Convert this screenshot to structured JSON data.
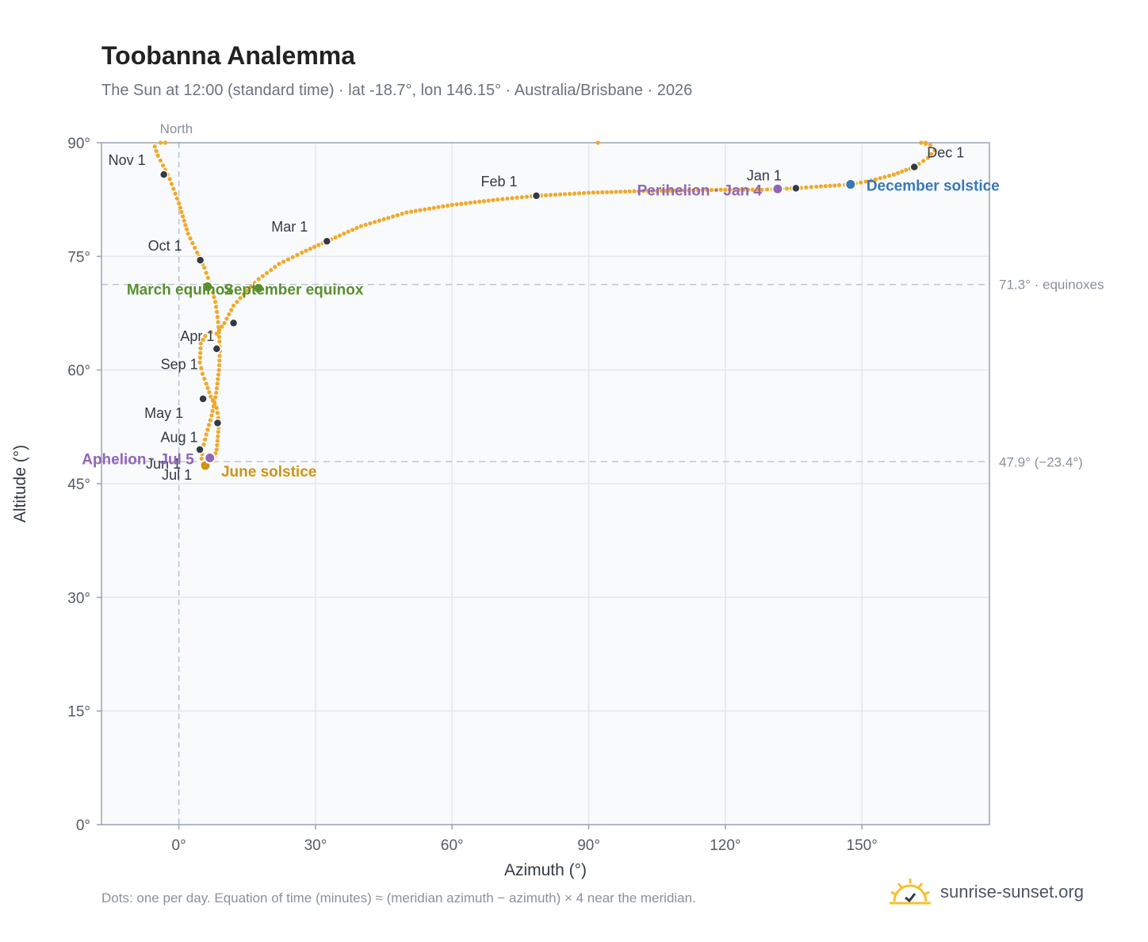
{
  "header": {
    "title": "Toobanna Analemma",
    "subtitle": "The Sun at 12:00 (standard time) · lat -18.7°, lon 146.15° · Australia/Brisbane · 2026"
  },
  "footer": {
    "note": "Dots: one per day. Equation of time (minutes) ≈ (meridian azimuth − azimuth) × 4 near the meridian.",
    "brand": "sunrise-sunset.org"
  },
  "colors": {
    "path": "#f0a92a",
    "month_marker": "#333a45",
    "equinox": "#5a8f2e",
    "december_solstice": "#3a78b8",
    "june_solstice": "#cf9414",
    "apsis": "#9066b5",
    "plot_bg": "#f8fafc",
    "grid": "#e3e7ec",
    "axis": "#9aa3b0"
  },
  "chart_data": {
    "type": "scatter",
    "xlabel": "Azimuth (°)",
    "ylabel": "Altitude (°)",
    "xlim": [
      -17,
      178
    ],
    "ylim": [
      0,
      90
    ],
    "x_ticks": [
      0,
      30,
      60,
      90,
      120,
      150
    ],
    "x_tick_labels": [
      "0°",
      "30°",
      "60°",
      "90°",
      "120°",
      "150°"
    ],
    "y_ticks": [
      0,
      15,
      30,
      45,
      60,
      75,
      90
    ],
    "y_tick_labels": [
      "0°",
      "15°",
      "30°",
      "45°",
      "60°",
      "75°",
      "90°"
    ],
    "grid": true,
    "north_line": {
      "x": 0,
      "label": "North"
    },
    "reference_lines": [
      {
        "y": 71.3,
        "label": "71.3° · equinoxes"
      },
      {
        "y": 47.9,
        "label": "47.9° (−23.4°)"
      }
    ],
    "daily_path": {
      "x": [
        -4.0,
        -5.3,
        -4.6,
        -3.5,
        -2.0,
        0.0,
        2.0,
        4.0,
        5.6,
        6.8,
        8.0,
        8.5,
        8.8,
        9.0,
        8.8,
        8.2,
        7.2,
        6.0,
        5.2,
        5.0,
        5.6,
        6.6,
        7.5,
        8.3,
        8.8,
        8.3,
        7.0,
        6.0,
        5.2,
        4.6,
        4.8,
        5.8,
        7.0,
        8.3,
        10.0,
        12.0,
        15.0,
        17.5,
        22.0,
        27.0,
        32.5,
        40.0,
        50.0,
        60.0,
        70.0,
        78.5,
        90.0,
        100.0,
        110.0,
        120.0,
        128.0,
        131.5,
        135.5,
        140.0,
        145.0,
        147.5,
        152.0,
        157.0,
        161.5,
        164.5,
        166.0,
        165.0,
        163.0
      ],
      "y": [
        90.0,
        89.5,
        88.3,
        87.0,
        85.2,
        82.0,
        78.0,
        75.5,
        73.5,
        71.5,
        69.0,
        67.0,
        65.0,
        62.5,
        60.0,
        57.0,
        54.0,
        51.5,
        49.5,
        48.3,
        47.6,
        47.5,
        48.0,
        49.5,
        53.0,
        55.0,
        56.5,
        58.2,
        59.5,
        61.0,
        63.5,
        64.5,
        65.0,
        64.8,
        66.2,
        68.5,
        70.5,
        72.0,
        74.0,
        75.5,
        77.0,
        79.0,
        80.8,
        81.8,
        82.5,
        83.0,
        83.4,
        83.6,
        83.7,
        83.8,
        83.8,
        83.9,
        84.0,
        84.2,
        84.4,
        84.5,
        85.0,
        85.8,
        86.8,
        88.0,
        89.0,
        89.7,
        90.0
      ]
    },
    "stray_points": {
      "x": [
        -3.0,
        92.0,
        164.0
      ],
      "y": [
        90.0,
        90.0,
        90.0
      ]
    },
    "month_markers": [
      {
        "label": "Jan 1",
        "x": 135.5,
        "y": 84.0
      },
      {
        "label": "Feb 1",
        "x": 78.5,
        "y": 83.0
      },
      {
        "label": "Mar 1",
        "x": 32.5,
        "y": 77.0
      },
      {
        "label": "Apr 1",
        "x": 8.3,
        "y": 62.8
      },
      {
        "label": "May 1",
        "x": 5.3,
        "y": 56.2
      },
      {
        "label": "Jun 1",
        "x": 4.6,
        "y": 49.5
      },
      {
        "label": "Jul 1",
        "x": 6.0,
        "y": 47.6
      },
      {
        "label": "Aug 1",
        "x": 8.5,
        "y": 53.0
      },
      {
        "label": "Sep 1",
        "x": 12.0,
        "y": 66.2
      },
      {
        "label": "Oct 1",
        "x": 4.7,
        "y": 74.5
      },
      {
        "label": "Nov 1",
        "x": -3.3,
        "y": 85.8
      },
      {
        "label": "Dec 1",
        "x": 161.5,
        "y": 86.8
      }
    ],
    "events": [
      {
        "label": "March equinox",
        "x": 6.3,
        "y": 71.0,
        "color": "#5a8f2e"
      },
      {
        "label": "September equinox",
        "x": 17.5,
        "y": 70.8,
        "color": "#5a8f2e"
      },
      {
        "label": "June solstice",
        "x": 5.8,
        "y": 47.4,
        "color": "#cf9414"
      },
      {
        "label": "December solstice",
        "x": 147.5,
        "y": 84.5,
        "color": "#3a78b8"
      },
      {
        "label": "Aphelion · Jul 5",
        "x": 6.8,
        "y": 48.4,
        "color": "#9066b5"
      },
      {
        "label": "Perihelion · Jan 4",
        "x": 131.5,
        "y": 83.9,
        "color": "#9066b5"
      }
    ]
  }
}
